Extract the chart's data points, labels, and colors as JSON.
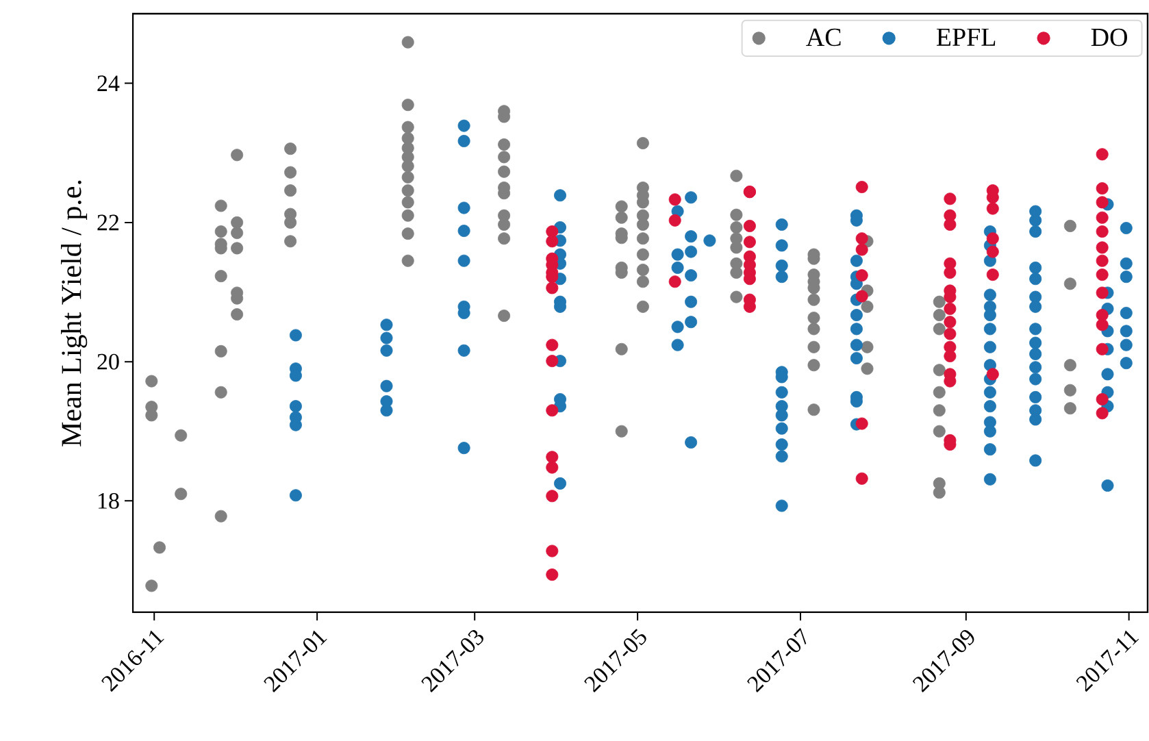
{
  "chart_data": {
    "type": "scatter",
    "ylabel": "Mean Light Yield / p.e.",
    "marker": "circle",
    "legend": "top right",
    "grid": false,
    "xlim": [
      "2016-10-24",
      "2017-11-08"
    ],
    "ylim": [
      16.4,
      25.0
    ],
    "xticks": [
      "2016-11",
      "2017-01",
      "2017-03",
      "2017-05",
      "2017-07",
      "2017-09",
      "2017-11"
    ],
    "yticks": [
      18,
      20,
      22,
      24
    ],
    "series": [
      {
        "name": "AC",
        "color": "#808080",
        "x": [
          "2016-10-31",
          "2016-10-31",
          "2016-10-31",
          "2016-10-31",
          "2016-11-03",
          "2016-11-11",
          "2016-11-11",
          "2016-11-26",
          "2016-11-26",
          "2016-11-26",
          "2016-11-26",
          "2016-11-26",
          "2016-11-26",
          "2016-11-26",
          "2016-11-26",
          "2016-12-02",
          "2016-12-02",
          "2016-12-02",
          "2016-12-02",
          "2016-12-02",
          "2016-12-02",
          "2016-12-02",
          "2016-12-22",
          "2016-12-22",
          "2016-12-22",
          "2016-12-22",
          "2016-12-22",
          "2016-12-22",
          "2017-02-04",
          "2017-02-04",
          "2017-02-04",
          "2017-02-04",
          "2017-02-04",
          "2017-02-04",
          "2017-02-04",
          "2017-02-04",
          "2017-02-04",
          "2017-02-04",
          "2017-02-04",
          "2017-02-04",
          "2017-02-04",
          "2017-03-12",
          "2017-03-12",
          "2017-03-12",
          "2017-03-12",
          "2017-03-12",
          "2017-03-12",
          "2017-03-12",
          "2017-03-12",
          "2017-03-12",
          "2017-03-12",
          "2017-03-12",
          "2017-04-25",
          "2017-04-25",
          "2017-04-25",
          "2017-04-25",
          "2017-04-25",
          "2017-04-25",
          "2017-04-25",
          "2017-04-25",
          "2017-05-03",
          "2017-05-03",
          "2017-05-03",
          "2017-05-03",
          "2017-05-03",
          "2017-05-03",
          "2017-05-03",
          "2017-05-03",
          "2017-05-03",
          "2017-05-03",
          "2017-05-03",
          "2017-06-07",
          "2017-06-07",
          "2017-06-07",
          "2017-06-07",
          "2017-06-07",
          "2017-06-07",
          "2017-06-07",
          "2017-06-07",
          "2017-07-06",
          "2017-07-06",
          "2017-07-06",
          "2017-07-06",
          "2017-07-06",
          "2017-07-06",
          "2017-07-06",
          "2017-07-06",
          "2017-07-06",
          "2017-07-06",
          "2017-07-06",
          "2017-07-26",
          "2017-07-26",
          "2017-07-26",
          "2017-07-26",
          "2017-07-26",
          "2017-08-22",
          "2017-08-22",
          "2017-08-22",
          "2017-08-22",
          "2017-08-22",
          "2017-08-22",
          "2017-08-22",
          "2017-08-22",
          "2017-08-22",
          "2017-10-10",
          "2017-10-10",
          "2017-10-10",
          "2017-10-10",
          "2017-10-10"
        ],
        "values": [
          19.72,
          19.35,
          19.23,
          16.78,
          17.33,
          18.94,
          18.1,
          22.24,
          21.87,
          21.69,
          21.63,
          21.23,
          20.15,
          19.56,
          17.78,
          22.97,
          22.0,
          21.85,
          21.63,
          20.99,
          20.91,
          20.68,
          23.06,
          22.72,
          22.46,
          22.12,
          22.0,
          21.73,
          24.59,
          23.69,
          23.37,
          23.21,
          23.07,
          22.94,
          22.81,
          22.65,
          22.46,
          22.29,
          22.1,
          21.84,
          21.45,
          23.6,
          23.52,
          23.12,
          22.94,
          22.73,
          22.5,
          22.42,
          22.1,
          21.97,
          21.77,
          20.66,
          22.23,
          22.07,
          21.84,
          21.78,
          21.35,
          21.28,
          20.18,
          19.0,
          23.14,
          22.5,
          22.39,
          22.29,
          22.1,
          21.97,
          21.77,
          21.54,
          21.32,
          21.15,
          20.79,
          22.67,
          22.11,
          21.93,
          21.77,
          21.64,
          21.41,
          21.28,
          20.93,
          21.54,
          21.48,
          21.25,
          21.15,
          21.06,
          20.89,
          20.63,
          20.47,
          20.21,
          19.95,
          19.31,
          21.73,
          21.02,
          20.79,
          20.21,
          19.9,
          20.86,
          20.67,
          20.47,
          19.88,
          19.56,
          19.3,
          19.0,
          18.25,
          18.12,
          21.95,
          21.12,
          19.95,
          19.59,
          19.33
        ]
      },
      {
        "name": "EPFL",
        "color": "#1f77b4",
        "x": [
          "2016-12-24",
          "2016-12-24",
          "2016-12-24",
          "2016-12-24",
          "2016-12-24",
          "2016-12-24",
          "2016-12-24",
          "2017-01-27",
          "2017-01-27",
          "2017-01-27",
          "2017-01-27",
          "2017-01-27",
          "2017-01-27",
          "2017-02-25",
          "2017-02-25",
          "2017-02-25",
          "2017-02-25",
          "2017-02-25",
          "2017-02-25",
          "2017-02-25",
          "2017-02-25",
          "2017-02-25",
          "2017-04-02",
          "2017-04-02",
          "2017-04-02",
          "2017-04-02",
          "2017-04-02",
          "2017-04-02",
          "2017-04-02",
          "2017-04-02",
          "2017-04-02",
          "2017-04-02",
          "2017-04-02",
          "2017-04-02",
          "2017-05-16",
          "2017-05-16",
          "2017-05-16",
          "2017-05-16",
          "2017-05-16",
          "2017-05-21",
          "2017-05-21",
          "2017-05-21",
          "2017-05-21",
          "2017-05-21",
          "2017-05-21",
          "2017-05-21",
          "2017-05-28",
          "2017-06-24",
          "2017-06-24",
          "2017-06-24",
          "2017-06-24",
          "2017-06-24",
          "2017-06-24",
          "2017-06-24",
          "2017-06-24",
          "2017-06-24",
          "2017-06-24",
          "2017-06-24",
          "2017-06-24",
          "2017-06-24",
          "2017-07-22",
          "2017-07-22",
          "2017-07-22",
          "2017-07-22",
          "2017-07-22",
          "2017-07-22",
          "2017-07-22",
          "2017-07-22",
          "2017-07-22",
          "2017-07-22",
          "2017-07-22",
          "2017-07-22",
          "2017-07-22",
          "2017-09-10",
          "2017-09-10",
          "2017-09-10",
          "2017-09-10",
          "2017-09-10",
          "2017-09-10",
          "2017-09-10",
          "2017-09-10",
          "2017-09-10",
          "2017-09-10",
          "2017-09-10",
          "2017-09-10",
          "2017-09-10",
          "2017-09-10",
          "2017-09-10",
          "2017-09-10",
          "2017-09-27",
          "2017-09-27",
          "2017-09-27",
          "2017-09-27",
          "2017-09-27",
          "2017-09-27",
          "2017-09-27",
          "2017-09-27",
          "2017-09-27",
          "2017-09-27",
          "2017-09-27",
          "2017-09-27",
          "2017-09-27",
          "2017-09-27",
          "2017-09-27",
          "2017-09-27",
          "2017-10-24",
          "2017-10-24",
          "2017-10-24",
          "2017-10-24",
          "2017-10-24",
          "2017-10-24",
          "2017-10-24",
          "2017-10-24",
          "2017-10-24",
          "2017-10-31",
          "2017-10-31",
          "2017-10-31",
          "2017-10-31",
          "2017-10-31",
          "2017-10-31",
          "2017-10-31"
        ],
        "values": [
          20.38,
          19.9,
          19.8,
          19.36,
          19.2,
          19.09,
          18.08,
          20.53,
          20.34,
          20.16,
          19.65,
          19.43,
          19.3,
          23.39,
          23.17,
          22.21,
          21.88,
          21.45,
          20.79,
          20.7,
          20.16,
          18.76,
          22.39,
          21.93,
          21.74,
          21.54,
          21.41,
          21.19,
          20.86,
          20.79,
          20.01,
          19.46,
          19.36,
          18.25,
          22.16,
          21.54,
          21.35,
          20.5,
          20.24,
          22.36,
          21.8,
          21.58,
          21.24,
          20.86,
          20.57,
          18.84,
          21.74,
          21.97,
          21.67,
          21.38,
          21.22,
          19.85,
          19.78,
          19.56,
          19.36,
          19.23,
          19.04,
          18.81,
          18.64,
          17.93,
          22.1,
          22.03,
          21.45,
          21.22,
          21.12,
          20.89,
          20.67,
          20.47,
          20.24,
          20.05,
          19.49,
          19.43,
          19.1,
          21.87,
          21.67,
          21.45,
          20.96,
          20.79,
          20.67,
          20.47,
          20.21,
          19.95,
          19.75,
          19.56,
          19.36,
          19.13,
          19.0,
          18.74,
          18.31,
          22.16,
          22.03,
          21.87,
          21.35,
          21.19,
          20.93,
          20.79,
          20.47,
          20.27,
          20.11,
          19.92,
          19.75,
          19.49,
          19.3,
          19.17,
          18.58,
          22.26,
          20.99,
          20.76,
          20.44,
          20.18,
          19.82,
          19.56,
          19.36,
          18.22,
          21.92,
          21.41,
          21.22,
          20.7,
          20.44,
          20.24,
          19.98
        ]
      },
      {
        "name": "DO",
        "color": "#dc143c",
        "x": [
          "2017-03-30",
          "2017-03-30",
          "2017-03-30",
          "2017-03-30",
          "2017-03-30",
          "2017-03-30",
          "2017-03-30",
          "2017-03-30",
          "2017-03-30",
          "2017-03-30",
          "2017-03-30",
          "2017-03-30",
          "2017-03-30",
          "2017-03-30",
          "2017-03-30",
          "2017-05-15",
          "2017-05-15",
          "2017-05-15",
          "2017-06-12",
          "2017-06-12",
          "2017-06-12",
          "2017-06-12",
          "2017-06-12",
          "2017-06-12",
          "2017-06-12",
          "2017-06-12",
          "2017-06-12",
          "2017-06-12",
          "2017-07-24",
          "2017-07-24",
          "2017-07-24",
          "2017-07-24",
          "2017-07-24",
          "2017-07-24",
          "2017-07-24",
          "2017-08-26",
          "2017-08-26",
          "2017-08-26",
          "2017-08-26",
          "2017-08-26",
          "2017-08-26",
          "2017-08-26",
          "2017-08-26",
          "2017-08-26",
          "2017-08-26",
          "2017-08-26",
          "2017-08-26",
          "2017-08-26",
          "2017-08-26",
          "2017-08-26",
          "2017-08-26",
          "2017-09-11",
          "2017-09-11",
          "2017-09-11",
          "2017-09-11",
          "2017-09-11",
          "2017-09-11",
          "2017-09-11",
          "2017-10-22",
          "2017-10-22",
          "2017-10-22",
          "2017-10-22",
          "2017-10-22",
          "2017-10-22",
          "2017-10-22",
          "2017-10-22",
          "2017-10-22",
          "2017-10-22",
          "2017-10-22",
          "2017-10-22",
          "2017-10-22",
          "2017-10-22"
        ],
        "values": [
          21.87,
          21.73,
          21.48,
          21.39,
          21.28,
          21.22,
          21.06,
          20.24,
          20.01,
          19.3,
          18.63,
          18.48,
          18.07,
          17.28,
          16.94,
          22.33,
          22.03,
          21.15,
          22.44,
          22.44,
          21.95,
          21.72,
          21.51,
          21.39,
          21.28,
          21.19,
          20.89,
          20.79,
          22.51,
          21.77,
          21.61,
          21.24,
          20.94,
          19.11,
          18.32,
          22.34,
          22.1,
          21.97,
          21.41,
          21.28,
          21.02,
          20.93,
          20.76,
          20.57,
          20.4,
          20.21,
          20.08,
          19.82,
          19.72,
          18.87,
          18.81,
          22.46,
          22.36,
          22.2,
          21.77,
          21.58,
          21.25,
          19.82,
          22.98,
          22.49,
          22.29,
          22.07,
          21.87,
          21.64,
          21.45,
          21.25,
          20.99,
          20.67,
          20.53,
          20.18,
          19.46,
          19.26
        ]
      }
    ]
  }
}
